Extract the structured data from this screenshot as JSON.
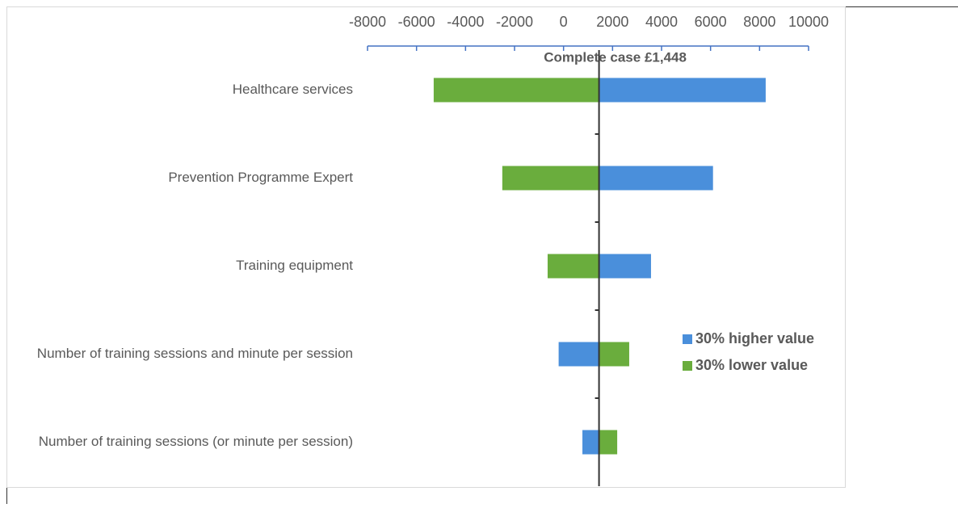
{
  "chart_data": {
    "type": "tornado",
    "annotation": "Complete case £1,448",
    "baseline": 1448,
    "categories": [
      "Healthcare services",
      "Prevention Programme Expert",
      "Training  equipment",
      "Number of training sessions and minute per session",
      "Number of training sessions (or minute per session)"
    ],
    "series": [
      {
        "name": "30% higher value",
        "color": "#4a8fdb",
        "values": [
          8250,
          6100,
          3570,
          -200,
          770
        ]
      },
      {
        "name": "30% lower value",
        "color": "#6aad3d",
        "values": [
          -5300,
          -2500,
          -650,
          2680,
          2190
        ]
      }
    ],
    "xlim": [
      -8000,
      10000
    ],
    "xticks": [
      -8000,
      -6000,
      -4000,
      -2000,
      0,
      2000,
      4000,
      6000,
      8000,
      10000
    ]
  }
}
